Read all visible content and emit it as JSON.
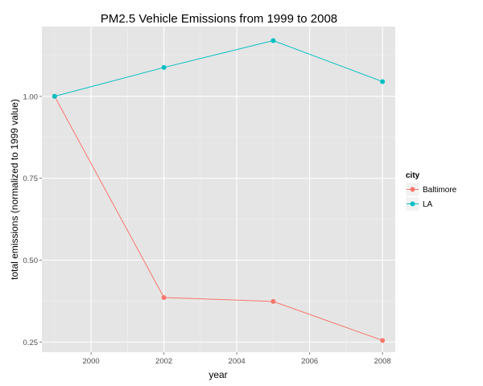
{
  "chart_data": {
    "type": "line",
    "title": "PM2.5 Vehicle Emissions from 1999 to 2008",
    "xlabel": "year",
    "ylabel": "total emissions (normalized to 1999 value)",
    "xlim": [
      1998.65,
      2008.35
    ],
    "ylim": [
      0.219,
      1.213
    ],
    "x_ticks": [
      2000,
      2002,
      2004,
      2006,
      2008
    ],
    "y_ticks": [
      0.25,
      0.5,
      0.75,
      1.0
    ],
    "x_tick_labels": [
      "2000",
      "2002",
      "2004",
      "2006",
      "2008"
    ],
    "y_tick_labels": [
      "0.25",
      "0.50",
      "0.75",
      "1.00"
    ],
    "x": [
      1999,
      2002,
      2005,
      2008
    ],
    "series": [
      {
        "name": "Baltimore",
        "color": "#f8766d",
        "values": [
          1.0,
          0.386,
          0.374,
          0.255
        ]
      },
      {
        "name": "LA",
        "color": "#00bfc4",
        "values": [
          1.0,
          1.088,
          1.17,
          1.045
        ]
      }
    ],
    "grid": true,
    "legend": {
      "title": "city",
      "position": "right"
    }
  }
}
